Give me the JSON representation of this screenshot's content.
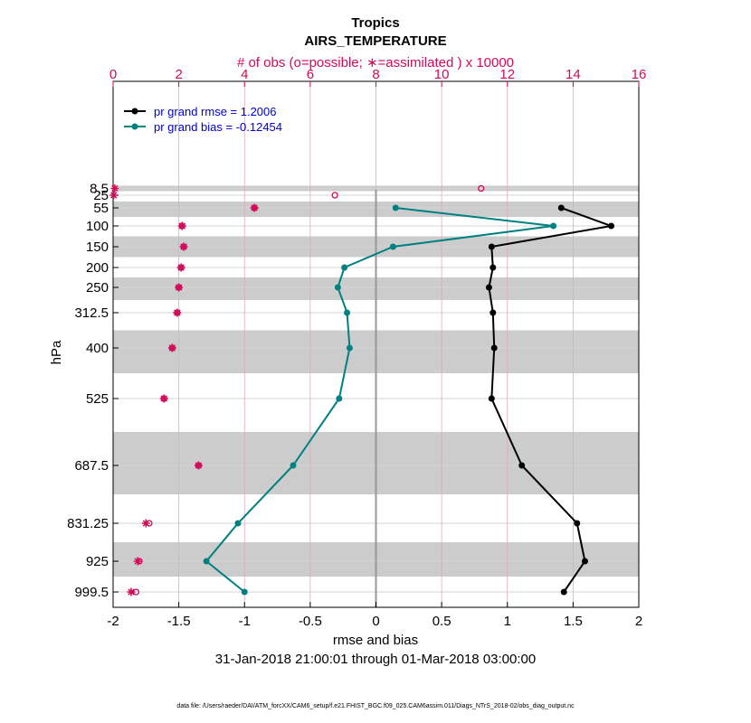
{
  "chart_data": {
    "type": "line",
    "title": "Tropics",
    "subtitle": "AIRS_TEMPERATURE",
    "top_axis_label": "# of obs (o=possible; ∗=assimilated ) x 10000",
    "xlabel": "rmse and bias",
    "date_range": "31-Jan-2018 21:00:01 through 01-Mar-2018 03:00:00",
    "ylabel": "hPa",
    "footer": "data file: /Users/raeder/DAI/ATM_forcXX/CAM6_setup/f.e21.FHIST_BGC.f09_025.CAM6assim.011/Diags_NTrS_2018-02/obs_diag_output.nc",
    "xlim": [
      -2,
      2
    ],
    "top_xlim": [
      0,
      16
    ],
    "x_ticks": [
      "-2",
      "-1.5",
      "-1",
      "-0.5",
      "0",
      "0.5",
      "1",
      "1.5",
      "2"
    ],
    "top_ticks": [
      "0",
      "2",
      "4",
      "6",
      "8",
      "10",
      "12",
      "14",
      "16"
    ],
    "levels": [
      "8.5",
      "25",
      "55",
      "100",
      "150",
      "200",
      "250",
      "312.5",
      "400",
      "525",
      "687.5",
      "831.25",
      "925",
      "999.5"
    ],
    "level_values": [
      8.5,
      25,
      55,
      100,
      150,
      200,
      250,
      312.5,
      400,
      525,
      687.5,
      831.25,
      925,
      999.5
    ],
    "series": [
      {
        "name": "rmse",
        "legend": "pr grand rmse = 1.2006",
        "color": "#000000",
        "points": [
          {
            "level": 55,
            "value": 1.41
          },
          {
            "level": 100,
            "value": 1.79
          },
          {
            "level": 150,
            "value": 0.88
          },
          {
            "level": 200,
            "value": 0.89
          },
          {
            "level": 250,
            "value": 0.86
          },
          {
            "level": 312.5,
            "value": 0.89
          },
          {
            "level": 400,
            "value": 0.9
          },
          {
            "level": 525,
            "value": 0.88
          },
          {
            "level": 687.5,
            "value": 1.11
          },
          {
            "level": 831.25,
            "value": 1.53
          },
          {
            "level": 925,
            "value": 1.59
          },
          {
            "level": 999.5,
            "value": 1.43
          }
        ]
      },
      {
        "name": "bias",
        "legend": "pr grand bias = -0.12454",
        "color": "#008080",
        "points": [
          {
            "level": 55,
            "value": 0.15
          },
          {
            "level": 100,
            "value": 1.35
          },
          {
            "level": 150,
            "value": 0.13
          },
          {
            "level": 200,
            "value": -0.24
          },
          {
            "level": 250,
            "value": -0.29
          },
          {
            "level": 312.5,
            "value": -0.22
          },
          {
            "level": 400,
            "value": -0.2
          },
          {
            "level": 525,
            "value": -0.28
          },
          {
            "level": 687.5,
            "value": -0.63
          },
          {
            "level": 831.25,
            "value": -1.05
          },
          {
            "level": 925,
            "value": -1.29
          },
          {
            "level": 999.5,
            "value": -1.0
          }
        ]
      }
    ],
    "obs_possible": [
      {
        "level": 8.5,
        "value": 11.2
      },
      {
        "level": 25,
        "value": 6.75
      },
      {
        "level": 55,
        "value": 4.3
      },
      {
        "level": 100,
        "value": 2.1
      },
      {
        "level": 150,
        "value": 2.15
      },
      {
        "level": 200,
        "value": 2.07
      },
      {
        "level": 250,
        "value": 2.0
      },
      {
        "level": 312.5,
        "value": 1.95
      },
      {
        "level": 400,
        "value": 1.8
      },
      {
        "level": 525,
        "value": 1.55
      },
      {
        "level": 687.5,
        "value": 2.6
      },
      {
        "level": 831.25,
        "value": 1.1
      },
      {
        "level": 925,
        "value": 0.8
      },
      {
        "level": 999.5,
        "value": 0.7
      }
    ],
    "obs_assimilated": [
      {
        "level": 8.5,
        "value": 0.05
      },
      {
        "level": 25,
        "value": 0.02
      },
      {
        "level": 55,
        "value": 4.3
      },
      {
        "level": 100,
        "value": 2.1
      },
      {
        "level": 150,
        "value": 2.15
      },
      {
        "level": 200,
        "value": 2.07
      },
      {
        "level": 250,
        "value": 2.0
      },
      {
        "level": 312.5,
        "value": 1.95
      },
      {
        "level": 400,
        "value": 1.8
      },
      {
        "level": 525,
        "value": 1.55
      },
      {
        "level": 687.5,
        "value": 2.6
      },
      {
        "level": 831.25,
        "value": 1.0
      },
      {
        "level": 925,
        "value": 0.75
      },
      {
        "level": 999.5,
        "value": 0.55
      }
    ],
    "grid": true,
    "legend_position": "top-left",
    "colors": {
      "top_axis": "#d10a5a",
      "legend_text": "#0000d0",
      "band": "#cccccc",
      "zero_line": "#999999"
    }
  }
}
